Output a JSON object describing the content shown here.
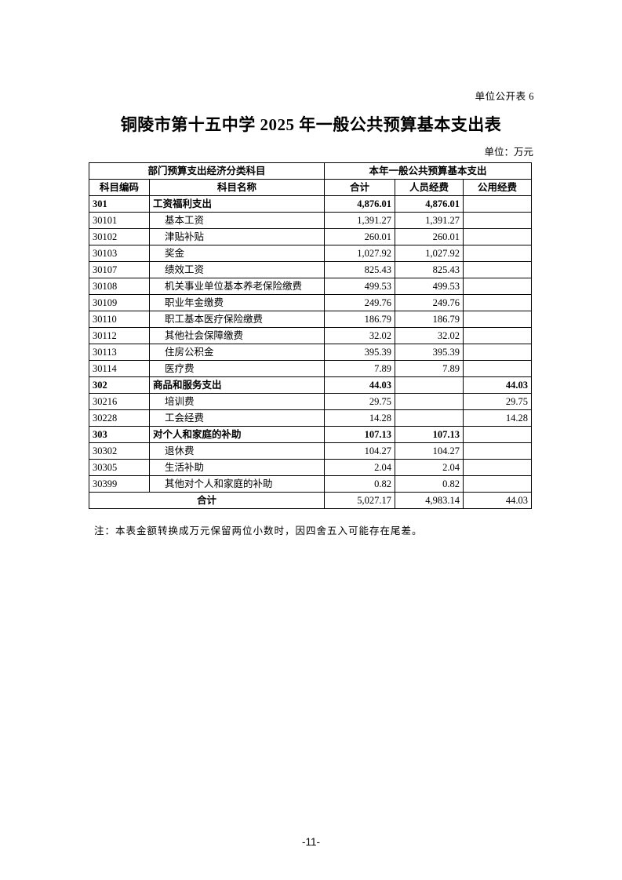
{
  "page": {
    "table_label": "单位公开表 6",
    "title": "铜陵市第十五中学 2025 年一般公共预算基本支出表",
    "unit": "单位：万元",
    "note": "注：本表金额转换成万元保留两位小数时，因四舍五入可能存在尾差。",
    "page_number": "-11-"
  },
  "table": {
    "header_group_left": "部门预算支出经济分类科目",
    "header_group_right": "本年一般公共预算基本支出",
    "columns": [
      "科目编码",
      "科目名称",
      "合计",
      "人员经费",
      "公用经费"
    ],
    "rows": [
      {
        "code": "301",
        "name": "工资福利支出",
        "total": "4,876.01",
        "personnel": "4,876.01",
        "public": "",
        "section": true,
        "indent": false
      },
      {
        "code": "30101",
        "name": "基本工资",
        "total": "1,391.27",
        "personnel": "1,391.27",
        "public": "",
        "section": false,
        "indent": true
      },
      {
        "code": "30102",
        "name": "津贴补贴",
        "total": "260.01",
        "personnel": "260.01",
        "public": "",
        "section": false,
        "indent": true
      },
      {
        "code": "30103",
        "name": "奖金",
        "total": "1,027.92",
        "personnel": "1,027.92",
        "public": "",
        "section": false,
        "indent": true
      },
      {
        "code": "30107",
        "name": "绩效工资",
        "total": "825.43",
        "personnel": "825.43",
        "public": "",
        "section": false,
        "indent": true
      },
      {
        "code": "30108",
        "name": "机关事业单位基本养老保险缴费",
        "total": "499.53",
        "personnel": "499.53",
        "public": "",
        "section": false,
        "indent": true
      },
      {
        "code": "30109",
        "name": "职业年金缴费",
        "total": "249.76",
        "personnel": "249.76",
        "public": "",
        "section": false,
        "indent": true
      },
      {
        "code": "30110",
        "name": "职工基本医疗保险缴费",
        "total": "186.79",
        "personnel": "186.79",
        "public": "",
        "section": false,
        "indent": true
      },
      {
        "code": "30112",
        "name": "其他社会保障缴费",
        "total": "32.02",
        "personnel": "32.02",
        "public": "",
        "section": false,
        "indent": true
      },
      {
        "code": "30113",
        "name": "住房公积金",
        "total": "395.39",
        "personnel": "395.39",
        "public": "",
        "section": false,
        "indent": true
      },
      {
        "code": "30114",
        "name": "医疗费",
        "total": "7.89",
        "personnel": "7.89",
        "public": "",
        "section": false,
        "indent": true
      },
      {
        "code": "302",
        "name": "商品和服务支出",
        "total": "44.03",
        "personnel": "",
        "public": "44.03",
        "section": true,
        "indent": false
      },
      {
        "code": "30216",
        "name": "培训费",
        "total": "29.75",
        "personnel": "",
        "public": "29.75",
        "section": false,
        "indent": true
      },
      {
        "code": "30228",
        "name": "工会经费",
        "total": "14.28",
        "personnel": "",
        "public": "14.28",
        "section": false,
        "indent": true
      },
      {
        "code": "303",
        "name": "对个人和家庭的补助",
        "total": "107.13",
        "personnel": "107.13",
        "public": "",
        "section": true,
        "indent": false
      },
      {
        "code": "30302",
        "name": "退休费",
        "total": "104.27",
        "personnel": "104.27",
        "public": "",
        "section": false,
        "indent": true
      },
      {
        "code": "30305",
        "name": "生活补助",
        "total": "2.04",
        "personnel": "2.04",
        "public": "",
        "section": false,
        "indent": true
      },
      {
        "code": "30399",
        "name": "其他对个人和家庭的补助",
        "total": "0.82",
        "personnel": "0.82",
        "public": "",
        "section": false,
        "indent": true
      }
    ],
    "footer": {
      "label": "合计",
      "total": "5,027.17",
      "personnel": "4,983.14",
      "public": "44.03"
    }
  }
}
